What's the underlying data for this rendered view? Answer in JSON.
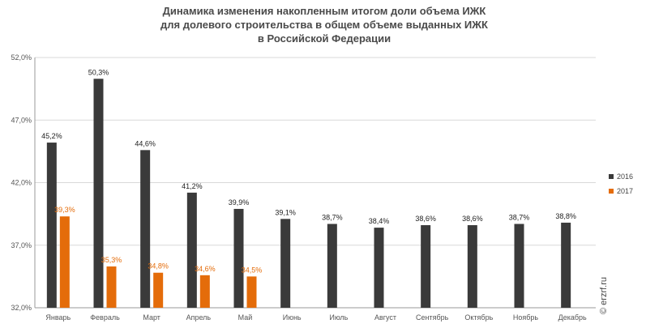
{
  "title_lines": [
    "Динамика изменения накопленным итогом доли объема ИЖК",
    "для долевого строительства  в общем объеме выданных ИЖК",
    "в Российской  Федерации"
  ],
  "watermark": "© erzrf.ru",
  "colors": {
    "s2016": "#3a3a3a",
    "s2017": "#e46c0a",
    "grid": "#d9d9d9",
    "axis": "#9a9a9a"
  },
  "chart_data": {
    "type": "bar",
    "title": "Динамика изменения накопленным итогом доли объема ИЖК для долевого строительства  в общем объеме выданных ИЖК в Российской  Федерации",
    "categories": [
      "Январь",
      "Февраль",
      "Март",
      "Апрель",
      "Май",
      "Июнь",
      "Июль",
      "Август",
      "Сентябрь",
      "Октябрь",
      "Ноябрь",
      "Декабрь"
    ],
    "series": [
      {
        "name": "2016",
        "values": [
          45.2,
          50.3,
          44.6,
          41.2,
          39.9,
          39.1,
          38.7,
          38.4,
          38.6,
          38.6,
          38.7,
          38.8
        ],
        "labels": [
          "45,2%",
          "50,3%",
          "44,6%",
          "41,2%",
          "39,9%",
          "39,1%",
          "38,7%",
          "38,4%",
          "38,6%",
          "38,6%",
          "38,7%",
          "38,8%"
        ]
      },
      {
        "name": "2017",
        "values": [
          39.3,
          35.3,
          34.8,
          34.6,
          34.5,
          null,
          null,
          null,
          null,
          null,
          null,
          null
        ],
        "labels": [
          "39,3%",
          "35,3%",
          "34,8%",
          "34,6%",
          "34,5%",
          null,
          null,
          null,
          null,
          null,
          null,
          null
        ]
      }
    ],
    "ylim": [
      32,
      52
    ],
    "yticks": [
      32,
      37,
      42,
      47,
      52
    ],
    "ytick_labels": [
      "32,0%",
      "37,0%",
      "42,0%",
      "47,0%",
      "52,0%"
    ],
    "xlabel": "",
    "ylabel": "",
    "grid": true,
    "legend_position": "right"
  }
}
